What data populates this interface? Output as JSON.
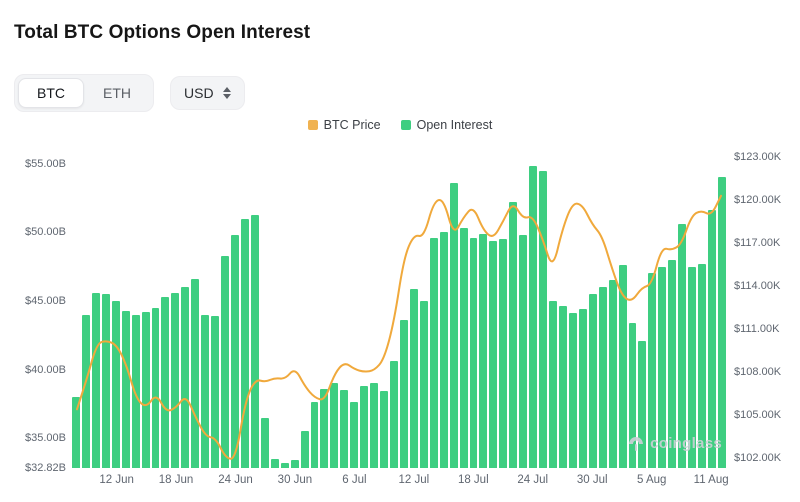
{
  "title": "Total BTC Options Open Interest",
  "controls": {
    "asset_toggle": [
      {
        "label": "BTC",
        "selected": true
      },
      {
        "label": "ETH",
        "selected": false
      }
    ],
    "currency": "USD"
  },
  "legend": [
    {
      "label": "BTC Price",
      "color": "#F0B251"
    },
    {
      "label": "Open Interest",
      "color": "#3ECE81"
    }
  ],
  "watermark": "coinglass",
  "chart_data": {
    "type": "bar",
    "title": "Total BTC Options Open Interest",
    "x_tick_labels": [
      "12 Jun",
      "18 Jun",
      "24 Jun",
      "30 Jun",
      "6 Jul",
      "12 Jul",
      "18 Jul",
      "24 Jul",
      "30 Jul",
      "5 Aug",
      "11 Aug"
    ],
    "x_tick_index": [
      4,
      10,
      16,
      22,
      28,
      34,
      40,
      46,
      52,
      58,
      64
    ],
    "left_axis": {
      "title": "Open Interest (USD)",
      "tick_labels": [
        "$55.00B",
        "$50.00B",
        "$45.00B",
        "$40.00B",
        "$35.00B",
        "$32.82B"
      ],
      "tick_values": [
        55,
        50,
        45,
        40,
        35,
        32.82
      ],
      "min": 32.82,
      "max": 56.0
    },
    "right_axis": {
      "title": "BTC Price (USD)",
      "tick_labels": [
        "$123.00K",
        "$120.00K",
        "$117.00K",
        "$114.00K",
        "$111.00K",
        "$108.00K",
        "$105.00K",
        "$102.00K"
      ],
      "tick_values": [
        123,
        120,
        117,
        114,
        111,
        108,
        105,
        102
      ],
      "min": 101.3,
      "max": 123.5
    },
    "series": [
      {
        "name": "Open Interest",
        "kind": "bar",
        "unit": "$B",
        "axis": "left",
        "color": "#3ECE81",
        "values": [
          38.0,
          44.0,
          45.6,
          45.5,
          45.0,
          44.3,
          44.0,
          44.2,
          44.5,
          45.3,
          45.6,
          46.0,
          46.6,
          44.0,
          43.9,
          48.3,
          49.8,
          51.0,
          51.3,
          36.5,
          33.5,
          33.2,
          33.4,
          35.5,
          37.6,
          38.6,
          39.0,
          38.5,
          37.6,
          38.8,
          39.0,
          38.4,
          40.6,
          43.6,
          45.9,
          45.0,
          49.6,
          50.0,
          53.6,
          50.3,
          49.6,
          49.9,
          49.4,
          49.5,
          52.2,
          49.8,
          54.8,
          54.5,
          45.0,
          44.6,
          44.1,
          44.4,
          45.5,
          46.0,
          46.5,
          47.6,
          43.4,
          42.1,
          47.0,
          47.5,
          48.0,
          50.6,
          47.5,
          47.7,
          51.6,
          54.0
        ]
      },
      {
        "name": "BTC Price",
        "kind": "line",
        "unit": "$K",
        "axis": "right",
        "color": "#F0A93C",
        "values": [
          105.4,
          107.5,
          110.0,
          110.2,
          109.9,
          108.5,
          106.1,
          105.5,
          106.5,
          105.2,
          105.5,
          106.4,
          104.8,
          103.5,
          103.4,
          102.0,
          101.9,
          106.0,
          107.5,
          107.3,
          107.6,
          107.5,
          108.3,
          107.0,
          106.2,
          106.0,
          107.9,
          108.7,
          108.2,
          108.0,
          108.1,
          108.9,
          111.5,
          116.0,
          117.6,
          117.4,
          119.9,
          120.1,
          117.5,
          118.8,
          119.6,
          117.9,
          117.3,
          118.5,
          119.9,
          118.7,
          118.9,
          117.3,
          115.1,
          118.0,
          119.8,
          119.7,
          118.3,
          117.5,
          115.2,
          113.3,
          112.9,
          113.9,
          114.1,
          116.7,
          116.5,
          116.9,
          118.9,
          119.3,
          118.9,
          120.3
        ]
      }
    ]
  }
}
